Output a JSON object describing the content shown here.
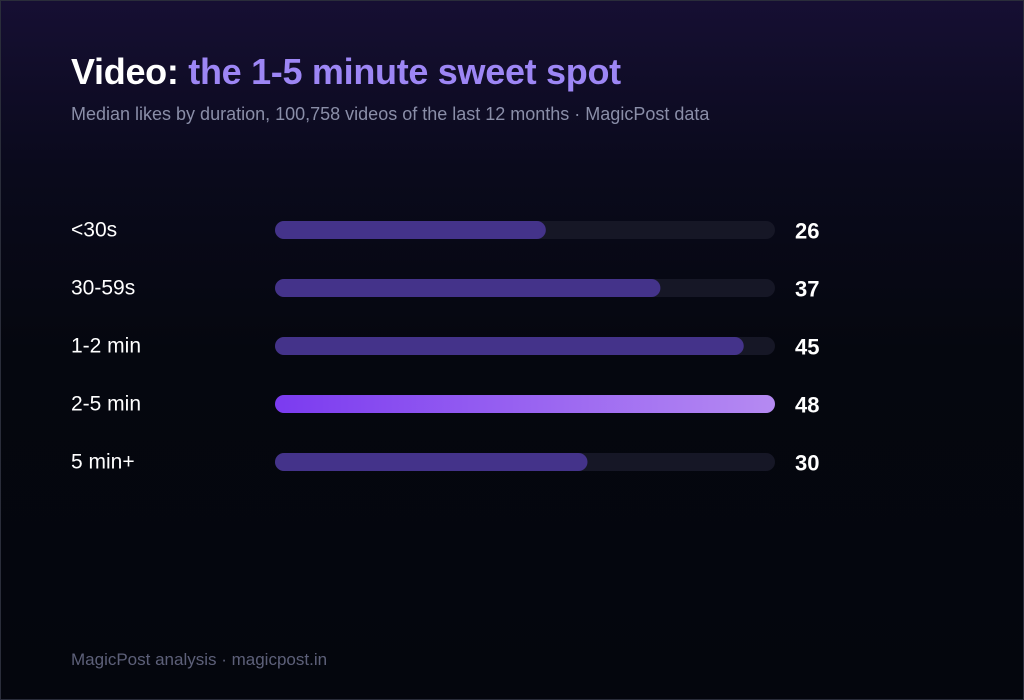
{
  "header": {
    "title_lead": "Video:",
    "title_accent": "the 1-5 minute sweet spot",
    "subtitle": "Median likes by duration, 100,758 videos of the last 12 months · MagicPost data"
  },
  "footer": {
    "text": "MagicPost analysis · magicpost.in"
  },
  "colors": {
    "bar_default": "#44338a",
    "bar_highlight_start": "#7b3bf0",
    "bar_highlight_end": "#b58af2",
    "track": "#161726",
    "accent": "#9d86f5"
  },
  "chart_data": {
    "type": "bar",
    "orientation": "horizontal",
    "categories": [
      "<30s",
      "30-59s",
      "1-2 min",
      "2-5 min",
      "5 min+"
    ],
    "values": [
      26,
      37,
      45,
      48,
      30
    ],
    "value_labels": [
      "26",
      "37",
      "45",
      "48",
      "30"
    ],
    "highlight_index": 3,
    "xlim": [
      0,
      48
    ],
    "grid": false,
    "legend": "none"
  }
}
